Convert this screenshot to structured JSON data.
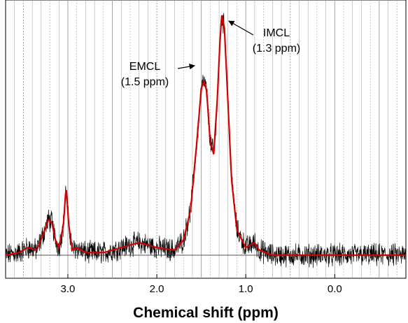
{
  "chart_data": {
    "type": "line",
    "title": "",
    "xlabel": "Chemical shift (ppm)",
    "ylabel": "",
    "x_reversed": true,
    "xlim": [
      3.7,
      -0.8
    ],
    "ylim": [
      -0.12,
      1.0
    ],
    "xticks": [
      3.0,
      2.0,
      1.0,
      0.0
    ],
    "xtick_labels": [
      "3.0",
      "2.0",
      "1.0",
      "0.0"
    ],
    "grid": "vertical",
    "baseline": 0.0,
    "series": [
      {
        "role": "fit",
        "color": "#d40000",
        "points": [
          [
            3.7,
            0.0
          ],
          [
            3.55,
            0.01
          ],
          [
            3.45,
            0.03
          ],
          [
            3.35,
            0.02
          ],
          [
            3.28,
            0.08
          ],
          [
            3.22,
            0.14
          ],
          [
            3.18,
            0.13
          ],
          [
            3.14,
            0.06
          ],
          [
            3.1,
            0.03
          ],
          [
            3.05,
            0.12
          ],
          [
            3.02,
            0.27
          ],
          [
            2.99,
            0.12
          ],
          [
            2.95,
            0.02
          ],
          [
            2.9,
            0.03
          ],
          [
            2.8,
            0.01
          ],
          [
            2.6,
            0.01
          ],
          [
            2.4,
            0.03
          ],
          [
            2.2,
            0.05
          ],
          [
            2.0,
            0.03
          ],
          [
            1.8,
            0.02
          ],
          [
            1.7,
            0.06
          ],
          [
            1.62,
            0.18
          ],
          [
            1.55,
            0.45
          ],
          [
            1.5,
            0.66
          ],
          [
            1.47,
            0.69
          ],
          [
            1.44,
            0.65
          ],
          [
            1.4,
            0.45
          ],
          [
            1.36,
            0.4
          ],
          [
            1.32,
            0.62
          ],
          [
            1.29,
            0.85
          ],
          [
            1.27,
            0.95
          ],
          [
            1.24,
            0.9
          ],
          [
            1.2,
            0.6
          ],
          [
            1.16,
            0.3
          ],
          [
            1.1,
            0.1
          ],
          [
            1.0,
            0.03
          ],
          [
            0.9,
            0.05
          ],
          [
            0.85,
            0.02
          ],
          [
            0.7,
            0.0
          ],
          [
            0.0,
            0.0
          ],
          [
            -0.8,
            0.0
          ]
        ]
      }
    ],
    "annotations": [
      {
        "label": "EMCL",
        "sub": "(1.5 ppm)",
        "x": 1.48,
        "y": 0.69
      },
      {
        "label": "IMCL",
        "sub": "(1.3 ppm)",
        "x": 1.27,
        "y": 0.95
      }
    ],
    "colors": {
      "raw": "#000000",
      "fit": "#d40000",
      "grid": "#9a9a9a",
      "background": "#ffffff"
    }
  }
}
